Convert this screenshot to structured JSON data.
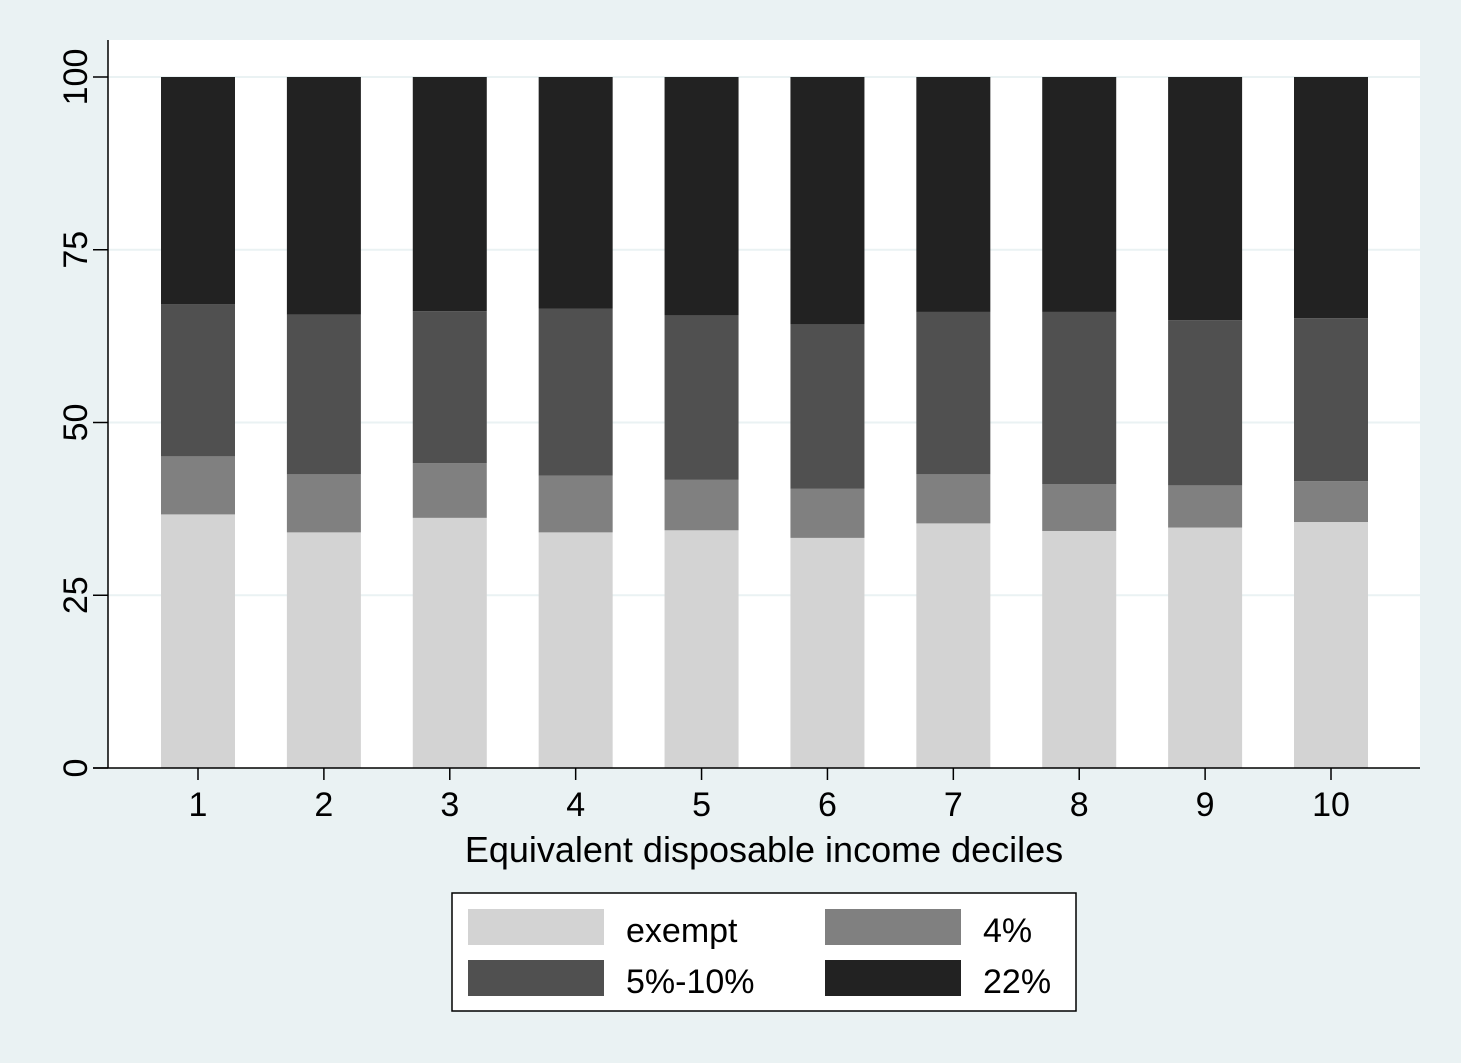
{
  "chart_data": {
    "type": "bar",
    "stacked": true,
    "title": "",
    "xlabel": "Equivalent disposable income deciles",
    "ylabel": "",
    "ylim": [
      0,
      100
    ],
    "yticks": [
      "0",
      "25",
      "50",
      "75",
      "100"
    ],
    "grid": true,
    "legend_position": "bottom",
    "categories": [
      "1",
      "2",
      "3",
      "4",
      "5",
      "6",
      "7",
      "8",
      "9",
      "10"
    ],
    "series": [
      {
        "name": "exempt",
        "color": "#d3d3d3",
        "values": [
          36.7,
          34.1,
          36.2,
          34.1,
          34.4,
          33.3,
          35.4,
          34.3,
          34.8,
          35.6
        ]
      },
      {
        "name": "4%",
        "color": "#808080",
        "values": [
          8.4,
          8.4,
          7.9,
          8.2,
          7.3,
          7.1,
          7.1,
          6.8,
          6.1,
          5.9
        ]
      },
      {
        "name": "5%-10%",
        "color": "#505050",
        "values": [
          22.0,
          23.1,
          22.0,
          24.2,
          23.8,
          23.8,
          23.5,
          24.9,
          23.9,
          23.6
        ]
      },
      {
        "name": "22%",
        "color": "#222222",
        "values": [
          32.9,
          34.4,
          33.9,
          33.5,
          34.5,
          35.8,
          34.0,
          34.0,
          35.2,
          34.9
        ]
      }
    ],
    "colors": {
      "background": "#eaf2f3",
      "plot_background": "#ffffff",
      "grid": "#eaf2f3",
      "axis": "#000000"
    }
  }
}
